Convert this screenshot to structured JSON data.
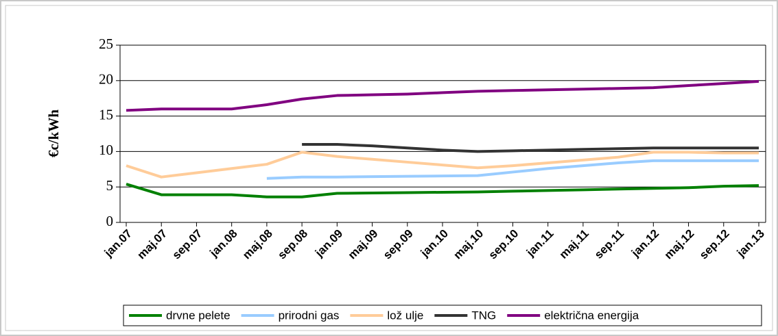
{
  "chart_data": {
    "type": "line",
    "y_label": "€c/kWh",
    "categories": [
      "jan.07",
      "maj.07",
      "sep.07",
      "jan.08",
      "maj.08",
      "sep.08",
      "jan.09",
      "maj.09",
      "sep.09",
      "jan.10",
      "maj.10",
      "sep.10",
      "jan.11",
      "maj.11",
      "sep.11",
      "jan.12",
      "maj.12",
      "sep.12",
      "jan.13"
    ],
    "series": [
      {
        "name": "drvne pelete",
        "color": "#008000",
        "values": [
          5.4,
          3.9,
          3.9,
          3.9,
          3.6,
          3.6,
          4.1,
          4.15,
          4.2,
          4.25,
          4.3,
          4.4,
          4.5,
          4.6,
          4.7,
          4.8,
          4.9,
          5.1,
          5.2
        ]
      },
      {
        "name": "prirodni gas",
        "color": "#99ccff",
        "values": [
          null,
          null,
          null,
          null,
          6.2,
          6.4,
          6.4,
          6.45,
          6.5,
          6.55,
          6.6,
          7.1,
          7.6,
          8.0,
          8.4,
          8.7,
          8.7,
          8.7,
          8.7
        ]
      },
      {
        "name": "lož ulje",
        "color": "#ffcc99",
        "values": [
          8,
          6.4,
          7.0,
          7.6,
          8.2,
          9.9,
          9.3,
          8.9,
          8.5,
          8.1,
          7.7,
          8.0,
          8.4,
          8.8,
          9.2,
          9.9,
          9.9,
          9.8,
          9.8
        ]
      },
      {
        "name": "TNG",
        "color": "#333333",
        "values": [
          null,
          null,
          null,
          null,
          null,
          11,
          11,
          10.8,
          10.5,
          10.2,
          10.0,
          10.1,
          10.2,
          10.3,
          10.4,
          10.5,
          10.5,
          10.5,
          10.5
        ]
      },
      {
        "name": "električna energija",
        "color": "#800080",
        "values": [
          15.8,
          16,
          16,
          16,
          16.6,
          17.4,
          17.9,
          18.0,
          18.1,
          18.3,
          18.5,
          18.6,
          18.7,
          18.8,
          18.9,
          19.0,
          19.3,
          19.6,
          19.9
        ]
      }
    ],
    "ylim": [
      0,
      25
    ],
    "yticks": [
      0,
      5,
      10,
      15,
      20,
      25
    ],
    "grid": true,
    "legend": "bottom"
  }
}
